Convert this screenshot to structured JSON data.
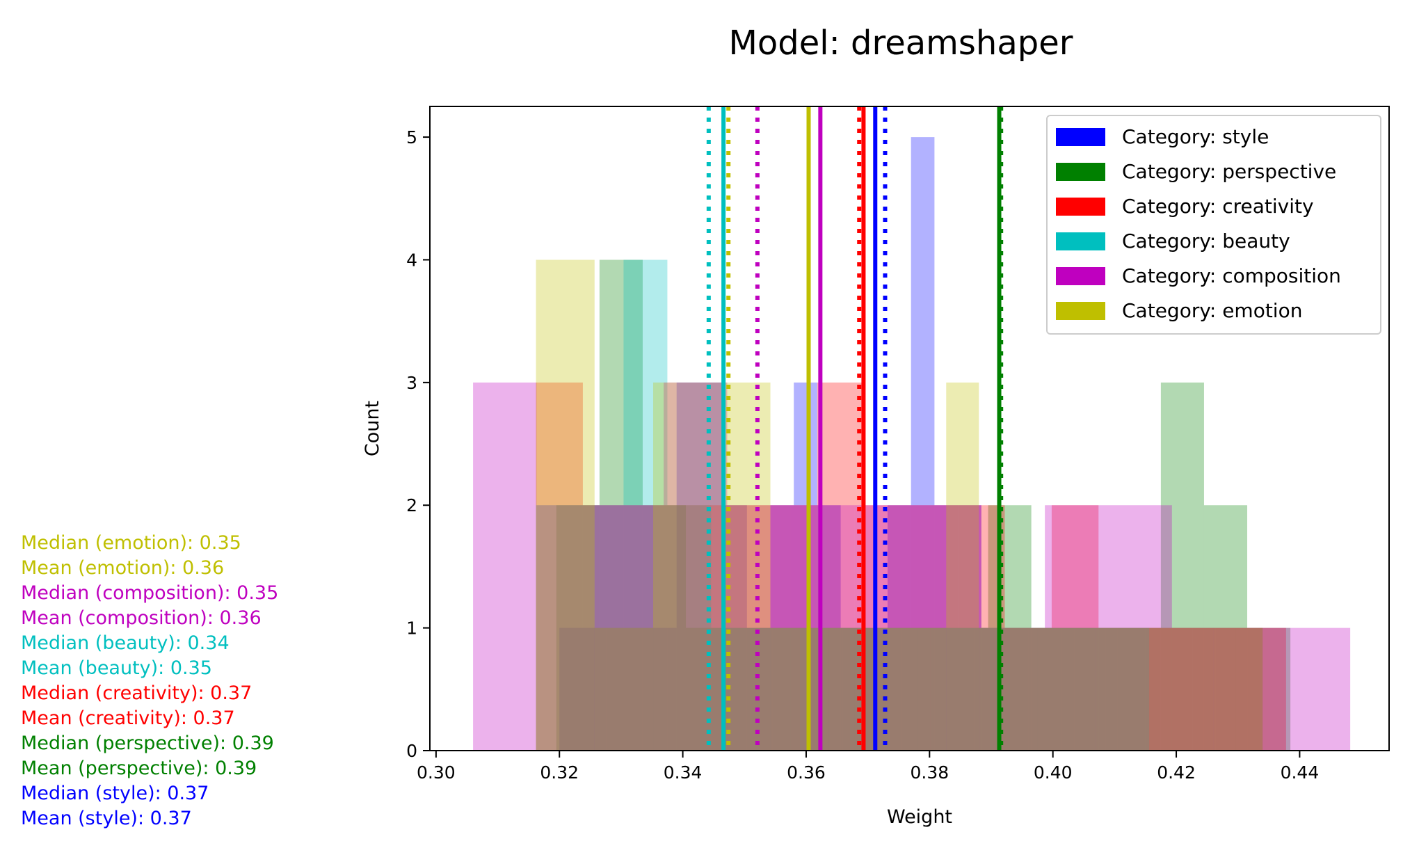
{
  "chart_data": {
    "type": "histogram",
    "title": "Model: dreamshaper",
    "xlabel": "Weight",
    "ylabel": "Count",
    "xlim": [
      0.299,
      0.4545
    ],
    "ylim": [
      0,
      5.25
    ],
    "x_ticks": [
      "0.30",
      "0.32",
      "0.34",
      "0.36",
      "0.38",
      "0.40",
      "0.42",
      "0.44"
    ],
    "y_ticks": [
      "0",
      "1",
      "2",
      "3",
      "4",
      "5"
    ],
    "legend_position": "top-right",
    "grid": false,
    "series": [
      {
        "name": "Category: style",
        "color": "#0000ff",
        "bars": [
          {
            "x0": 0.32,
            "x1": 0.3238,
            "count": 1
          },
          {
            "x0": 0.3238,
            "x1": 0.3276,
            "count": 1
          },
          {
            "x0": 0.3276,
            "x1": 0.3314,
            "count": 1
          },
          {
            "x0": 0.3314,
            "x1": 0.3352,
            "count": 1
          },
          {
            "x0": 0.3352,
            "x1": 0.339,
            "count": 1
          },
          {
            "x0": 0.339,
            "x1": 0.3428,
            "count": 3
          },
          {
            "x0": 0.3428,
            "x1": 0.3466,
            "count": 3
          },
          {
            "x0": 0.3466,
            "x1": 0.3504,
            "count": 2
          },
          {
            "x0": 0.3504,
            "x1": 0.3542,
            "count": 1
          },
          {
            "x0": 0.3542,
            "x1": 0.358,
            "count": 2
          },
          {
            "x0": 0.358,
            "x1": 0.3618,
            "count": 3
          },
          {
            "x0": 0.3618,
            "x1": 0.3656,
            "count": 2
          },
          {
            "x0": 0.3656,
            "x1": 0.3694,
            "count": 1
          },
          {
            "x0": 0.3694,
            "x1": 0.3732,
            "count": 1
          },
          {
            "x0": 0.3732,
            "x1": 0.377,
            "count": 2
          },
          {
            "x0": 0.377,
            "x1": 0.3808,
            "count": 5
          },
          {
            "x0": 0.3808,
            "x1": 0.3846,
            "count": 2
          },
          {
            "x0": 0.3846,
            "x1": 0.3884,
            "count": 2
          },
          {
            "x0": 0.3884,
            "x1": 0.3922,
            "count": 1
          },
          {
            "x0": 0.3922,
            "x1": 0.396,
            "count": 1
          },
          {
            "x0": 0.396,
            "x1": 0.3998,
            "count": 1
          },
          {
            "x0": 0.3998,
            "x1": 0.4036,
            "count": 1
          },
          {
            "x0": 0.4036,
            "x1": 0.4074,
            "count": 1
          },
          {
            "x0": 0.4074,
            "x1": 0.4112,
            "count": 1
          },
          {
            "x0": 0.4112,
            "x1": 0.415,
            "count": 1
          },
          {
            "x0": 0.415,
            "x1": 0.4188,
            "count": 1
          },
          {
            "x0": 0.4188,
            "x1": 0.4226,
            "count": 1
          },
          {
            "x0": 0.4226,
            "x1": 0.4264,
            "count": 1
          },
          {
            "x0": 0.4264,
            "x1": 0.4302,
            "count": 1
          },
          {
            "x0": 0.4302,
            "x1": 0.434,
            "count": 1
          }
        ],
        "mean": 0.3712,
        "median": 0.3728
      },
      {
        "name": "Category: perspective",
        "color": "#008000",
        "bars": [
          {
            "x0": 0.3195,
            "x1": 0.3265,
            "count": 2
          },
          {
            "x0": 0.3265,
            "x1": 0.3335,
            "count": 4
          },
          {
            "x0": 0.3335,
            "x1": 0.3405,
            "count": 2
          },
          {
            "x0": 0.3405,
            "x1": 0.3475,
            "count": 1
          },
          {
            "x0": 0.3475,
            "x1": 0.3545,
            "count": 1
          },
          {
            "x0": 0.3545,
            "x1": 0.3615,
            "count": 1
          },
          {
            "x0": 0.3615,
            "x1": 0.3685,
            "count": 1
          },
          {
            "x0": 0.3685,
            "x1": 0.3755,
            "count": 1
          },
          {
            "x0": 0.3755,
            "x1": 0.3825,
            "count": 1
          },
          {
            "x0": 0.3825,
            "x1": 0.3895,
            "count": 1
          },
          {
            "x0": 0.3895,
            "x1": 0.3965,
            "count": 2
          },
          {
            "x0": 0.3965,
            "x1": 0.4035,
            "count": 1
          },
          {
            "x0": 0.4035,
            "x1": 0.4105,
            "count": 1
          },
          {
            "x0": 0.4105,
            "x1": 0.4175,
            "count": 1
          },
          {
            "x0": 0.4175,
            "x1": 0.4245,
            "count": 3
          },
          {
            "x0": 0.4245,
            "x1": 0.4315,
            "count": 2
          },
          {
            "x0": 0.4315,
            "x1": 0.4385,
            "count": 1
          }
        ],
        "mean": 0.3913,
        "median": 0.3916
      },
      {
        "name": "Category: creativity",
        "color": "#ff0000",
        "bars": [
          {
            "x0": 0.3162,
            "x1": 0.3238,
            "count": 3
          },
          {
            "x0": 0.3238,
            "x1": 0.3314,
            "count": 2
          },
          {
            "x0": 0.3314,
            "x1": 0.339,
            "count": 2
          },
          {
            "x0": 0.339,
            "x1": 0.3466,
            "count": 2
          },
          {
            "x0": 0.3466,
            "x1": 0.3542,
            "count": 2
          },
          {
            "x0": 0.3542,
            "x1": 0.3618,
            "count": 2
          },
          {
            "x0": 0.3618,
            "x1": 0.3694,
            "count": 3
          },
          {
            "x0": 0.3694,
            "x1": 0.377,
            "count": 2
          },
          {
            "x0": 0.377,
            "x1": 0.3846,
            "count": 2
          },
          {
            "x0": 0.3846,
            "x1": 0.3922,
            "count": 2
          },
          {
            "x0": 0.3922,
            "x1": 0.3998,
            "count": 1
          },
          {
            "x0": 0.3998,
            "x1": 0.4074,
            "count": 2
          },
          {
            "x0": 0.4074,
            "x1": 0.415,
            "count": 1
          },
          {
            "x0": 0.415,
            "x1": 0.4226,
            "count": 1
          },
          {
            "x0": 0.4226,
            "x1": 0.4302,
            "count": 1
          },
          {
            "x0": 0.4302,
            "x1": 0.4378,
            "count": 1
          }
        ],
        "mean": 0.3693,
        "median": 0.3686
      },
      {
        "name": "Category: beauty",
        "color": "#00bfbf",
        "bars": [
          {
            "x0": 0.3162,
            "x1": 0.3233,
            "count": 2
          },
          {
            "x0": 0.3233,
            "x1": 0.3304,
            "count": 2
          },
          {
            "x0": 0.3304,
            "x1": 0.3375,
            "count": 4
          },
          {
            "x0": 0.3375,
            "x1": 0.3446,
            "count": 2
          },
          {
            "x0": 0.3446,
            "x1": 0.3517,
            "count": 1
          },
          {
            "x0": 0.3517,
            "x1": 0.3588,
            "count": 1
          },
          {
            "x0": 0.3588,
            "x1": 0.3659,
            "count": 1
          },
          {
            "x0": 0.3659,
            "x1": 0.373,
            "count": 1
          },
          {
            "x0": 0.373,
            "x1": 0.3801,
            "count": 1
          },
          {
            "x0": 0.3801,
            "x1": 0.3872,
            "count": 1
          },
          {
            "x0": 0.3872,
            "x1": 0.3943,
            "count": 1
          },
          {
            "x0": 0.3943,
            "x1": 0.4014,
            "count": 1
          },
          {
            "x0": 0.4014,
            "x1": 0.4085,
            "count": 1
          },
          {
            "x0": 0.4085,
            "x1": 0.4156,
            "count": 1
          }
        ],
        "mean": 0.3466,
        "median": 0.3442
      },
      {
        "name": "Category: composition",
        "color": "#bf00bf",
        "bars": [
          {
            "x0": 0.306,
            "x1": 0.3163,
            "count": 3
          },
          {
            "x0": 0.3163,
            "x1": 0.3266,
            "count": 2
          },
          {
            "x0": 0.3266,
            "x1": 0.3369,
            "count": 2
          },
          {
            "x0": 0.3369,
            "x1": 0.3472,
            "count": 3
          },
          {
            "x0": 0.3472,
            "x1": 0.3575,
            "count": 2
          },
          {
            "x0": 0.3575,
            "x1": 0.3678,
            "count": 2
          },
          {
            "x0": 0.3678,
            "x1": 0.3781,
            "count": 2
          },
          {
            "x0": 0.3781,
            "x1": 0.3884,
            "count": 2
          },
          {
            "x0": 0.3884,
            "x1": 0.3987,
            "count": 1
          },
          {
            "x0": 0.3987,
            "x1": 0.409,
            "count": 2
          },
          {
            "x0": 0.409,
            "x1": 0.4193,
            "count": 2
          },
          {
            "x0": 0.4193,
            "x1": 0.4296,
            "count": 1
          },
          {
            "x0": 0.4296,
            "x1": 0.4399,
            "count": 1
          },
          {
            "x0": 0.4399,
            "x1": 0.4482,
            "count": 1
          }
        ],
        "mean": 0.3623,
        "median": 0.3521
      },
      {
        "name": "Category: emotion",
        "color": "#bfbf00",
        "bars": [
          {
            "x0": 0.3162,
            "x1": 0.3257,
            "count": 4
          },
          {
            "x0": 0.3257,
            "x1": 0.3352,
            "count": 1
          },
          {
            "x0": 0.3352,
            "x1": 0.3447,
            "count": 3
          },
          {
            "x0": 0.3447,
            "x1": 0.3542,
            "count": 3
          },
          {
            "x0": 0.3542,
            "x1": 0.3637,
            "count": 1
          },
          {
            "x0": 0.3637,
            "x1": 0.3732,
            "count": 1
          },
          {
            "x0": 0.3732,
            "x1": 0.3827,
            "count": 1
          },
          {
            "x0": 0.3827,
            "x1": 0.388,
            "count": 3
          },
          {
            "x0": 0.388,
            "x1": 0.3975,
            "count": 1
          },
          {
            "x0": 0.3975,
            "x1": 0.407,
            "count": 1
          },
          {
            "x0": 0.407,
            "x1": 0.4165,
            "count": 1
          },
          {
            "x0": 0.4165,
            "x1": 0.426,
            "count": 1
          },
          {
            "x0": 0.426,
            "x1": 0.434,
            "count": 1
          }
        ],
        "mean": 0.3604,
        "median": 0.3474
      }
    ],
    "stats_text": [
      {
        "label": "Median (emotion): 0.35",
        "color": "#bfbf00"
      },
      {
        "label": "Mean (emotion): 0.36",
        "color": "#bfbf00"
      },
      {
        "label": "Median (composition): 0.35",
        "color": "#bf00bf"
      },
      {
        "label": "Mean (composition): 0.36",
        "color": "#bf00bf"
      },
      {
        "label": "Median (beauty): 0.34",
        "color": "#00bfbf"
      },
      {
        "label": "Mean (beauty): 0.35",
        "color": "#00bfbf"
      },
      {
        "label": "Median (creativity): 0.37",
        "color": "#ff0000"
      },
      {
        "label": "Mean (creativity): 0.37",
        "color": "#ff0000"
      },
      {
        "label": "Median (perspective): 0.39",
        "color": "#008000"
      },
      {
        "label": "Mean (perspective): 0.39",
        "color": "#008000"
      },
      {
        "label": "Median (style): 0.37",
        "color": "#0000ff"
      },
      {
        "label": "Mean (style): 0.37",
        "color": "#0000ff"
      }
    ]
  }
}
